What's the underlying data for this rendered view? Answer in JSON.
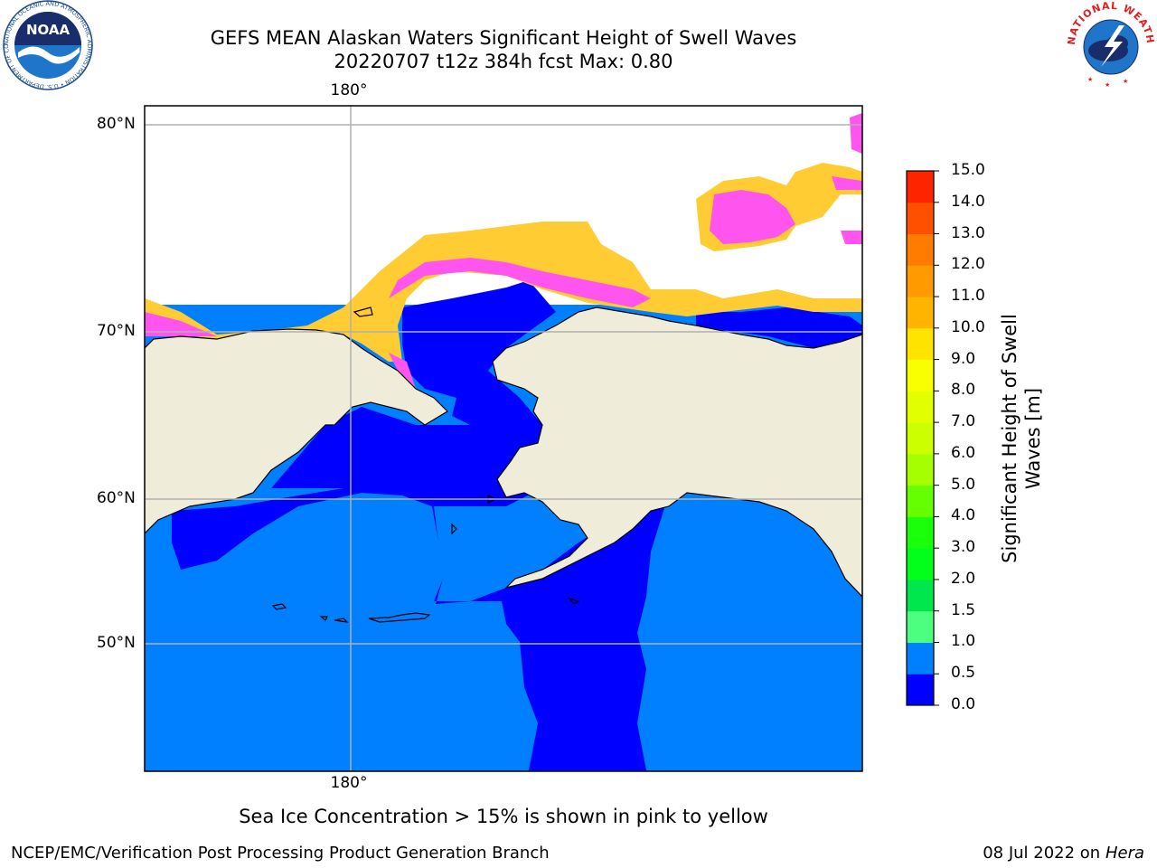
{
  "title": {
    "line1": "GEFS MEAN Alaskan Waters Significant Height of Swell Waves",
    "line2": "20220707 t12z 384h fcst   Max: 0.80"
  },
  "map": {
    "lat_labels": [
      "80°N",
      "70°N",
      "60°N",
      "50°N"
    ],
    "lon_label_top": "180°",
    "lon_label_bottom": "180°"
  },
  "colorbar": {
    "title_line1": "Significant Height of Swell",
    "title_line2": "Waves [m]",
    "ticks": [
      "15.0",
      "14.0",
      "13.0",
      "12.0",
      "11.0",
      "10.0",
      "9.0",
      "8.0",
      "7.0",
      "6.0",
      "5.0",
      "4.0",
      "3.0",
      "2.0",
      "1.5",
      "1.0",
      "0.5",
      "0.0"
    ],
    "colors": [
      "#ff0000",
      "#ff2400",
      "#ff5000",
      "#ff7c00",
      "#ff9a00",
      "#ffb400",
      "#ffe400",
      "#f8ff00",
      "#e2ff00",
      "#ccff00",
      "#a6ff00",
      "#66ff00",
      "#1aff0a",
      "#00ff1a",
      "#00e64d",
      "#4cff7f",
      "#a6ffff",
      "#00ffff"
    ]
  },
  "fields": {
    "land": "#efedda",
    "ocean_low": "#0000ff",
    "ocean_mid": "#0080ff",
    "ice_pink": "#ff55ee",
    "ice_orange": "#ffb070",
    "ice_yellow": "#ffcc33"
  },
  "note": "Sea Ice Concentration > 15% is shown in pink to yellow",
  "footer": {
    "left": "NCEP/EMC/Verification Post Processing Product Generation Branch",
    "date": "08 Jul 2022 on ",
    "machine": "Hera"
  },
  "logos": {
    "noaa": "NOAA",
    "noaa_ring": "NATIONAL OCEANIC AND ATMOSPHERIC ADMINISTRATION • U.S. DEPARTMENT OF COMMERCE",
    "nws_ring": "NATIONAL WEATHER SERVICE"
  }
}
